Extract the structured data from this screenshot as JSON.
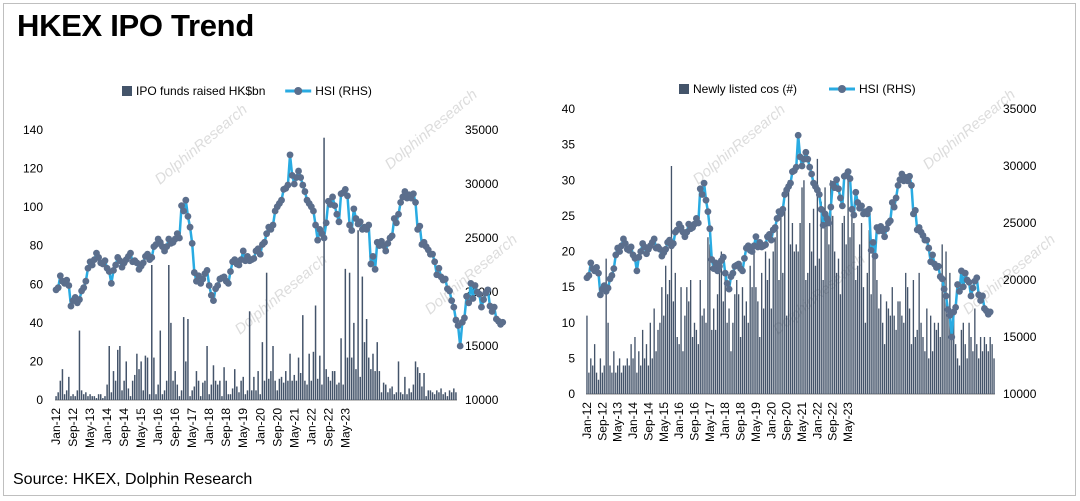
{
  "title": "HKEX IPO Trend",
  "source": "Source: HKEX, Dolphin Research",
  "colors": {
    "bar": "#44546a",
    "line": "#29abe2",
    "marker": "#5b6e8c",
    "axis": "#7f7f7f",
    "watermark": "#d9d9d9"
  },
  "watermark_text": "DolphinResearch",
  "chart_data": [
    {
      "type": "bar",
      "id": "chart-left",
      "title": "",
      "legend": [
        "IPO funds raised HK$bn",
        "HSI (RHS)"
      ],
      "legend_placement": "top",
      "ylim": [
        0,
        140
      ],
      "y_ticks": [
        0,
        20,
        40,
        60,
        80,
        100,
        120,
        140
      ],
      "y2lim": [
        10000,
        35000
      ],
      "y2_ticks": [
        10000,
        15000,
        20000,
        25000,
        30000,
        35000
      ],
      "x_tick_labels": [
        "Jan-12",
        "Sep-12",
        "May-13",
        "Jan-14",
        "Sep-14",
        "May-15",
        "Jan-16",
        "Sep-16",
        "May-17",
        "Jan-18",
        "Sep-18",
        "May-19",
        "Jan-20",
        "Sep-20",
        "May-21",
        "Jan-22",
        "Sep-22",
        "May-23"
      ],
      "series": [
        {
          "name": "IPO funds raised HK$bn",
          "type": "bar",
          "values": [
            2,
            4,
            10,
            16,
            3,
            5,
            12,
            2,
            3,
            2,
            5,
            36,
            5,
            3,
            4,
            2,
            3,
            2,
            2,
            1,
            3,
            3,
            1,
            2,
            8,
            28,
            4,
            15,
            10,
            26,
            28,
            5,
            10,
            20,
            6,
            2,
            10,
            13,
            24,
            16,
            20,
            5,
            23,
            22,
            3,
            70,
            22,
            3,
            8,
            36,
            3,
            5,
            10,
            70,
            40,
            10,
            15,
            8,
            2,
            5,
            43,
            20,
            42,
            2,
            5,
            7,
            15,
            10,
            2,
            9,
            10,
            28,
            3,
            8,
            18,
            10,
            8,
            10,
            2,
            17,
            10,
            3,
            3,
            6,
            16,
            7,
            4,
            10,
            12,
            3,
            5,
            46,
            5,
            12,
            5,
            15,
            3,
            30,
            10,
            66,
            11,
            15,
            28,
            10,
            5,
            11,
            12,
            9,
            15,
            10,
            24,
            10,
            13,
            10,
            22,
            14,
            44,
            10,
            8,
            24,
            10,
            25,
            49,
            11,
            23,
            8,
            136,
            16,
            12,
            10,
            15,
            15,
            8,
            9,
            32,
            8,
            68,
            22,
            66,
            22,
            40,
            16,
            88,
            12,
            64,
            30,
            42,
            22,
            16,
            24,
            15,
            30,
            15,
            4,
            9,
            8,
            4,
            6,
            7,
            3,
            4,
            20,
            4,
            3,
            12,
            3,
            6,
            4,
            8,
            20,
            17,
            14,
            7,
            14,
            2,
            5,
            5,
            4,
            3,
            5,
            4,
            6,
            3,
            4,
            2,
            5,
            4,
            6,
            4
          ]
        },
        {
          "name": "HSI (RHS)",
          "type": "line",
          "values": [
            20200,
            20400,
            21500,
            21000,
            20800,
            21100,
            20600,
            18700,
            19200,
            19500,
            19000,
            19300,
            20100,
            20400,
            21000,
            22200,
            22800,
            22500,
            23000,
            23600,
            23200,
            22700,
            22600,
            22900,
            22200,
            21900,
            20800,
            22000,
            22500,
            23200,
            22900,
            22300,
            22700,
            23000,
            23300,
            23600,
            22800,
            22900,
            22700,
            22100,
            22400,
            22700,
            23300,
            23500,
            23000,
            23200,
            24200,
            24400,
            24900,
            24600,
            24200,
            23800,
            24200,
            24900,
            24500,
            24600,
            24900,
            25400,
            25000,
            28000,
            27500,
            28500,
            27000,
            26000,
            24500,
            21800,
            21000,
            21500,
            20800,
            21200,
            21700,
            22000,
            20600,
            19700,
            19200,
            20300,
            20600,
            21200,
            21300,
            21400,
            21000,
            20800,
            21900,
            22800,
            23000,
            22600,
            22500,
            23000,
            23800,
            22900,
            23300,
            22900,
            23000,
            23100,
            23800,
            24000,
            23500,
            24400,
            24600,
            25400,
            26000,
            25800,
            26200,
            27500,
            27900,
            28200,
            28500,
            29500,
            29600,
            29900,
            32700,
            30800,
            30000,
            30600,
            31200,
            30600,
            29900,
            29300,
            28500,
            28200,
            27900,
            27500,
            26200,
            24800,
            25800,
            25400,
            25000,
            26400,
            28400,
            28100,
            28800,
            28000,
            27200,
            26500,
            29100,
            29200,
            29500,
            28900,
            26200,
            25700,
            27700,
            26800,
            26300,
            26500,
            25800,
            26000,
            25800,
            26200,
            22600,
            23300,
            22100,
            24600,
            24300,
            24700,
            24300,
            23800,
            24500,
            25000,
            25200,
            26800,
            26400,
            27200,
            28300,
            28800,
            29300,
            28700,
            29000,
            28700,
            29100,
            28300,
            25800,
            26100,
            24400,
            24600,
            24200,
            23900,
            23500,
            23500,
            22800,
            21600,
            22200,
            21400,
            21100,
            21200,
            20300,
            20100,
            19200,
            18600,
            17400,
            16900,
            15000,
            17200,
            17600,
            19600,
            19000,
            20800,
            19400,
            20600,
            20000,
            19800,
            18600,
            19300,
            19900,
            20200,
            18700,
            18200,
            18600,
            17500,
            17300,
            17000,
            17200
          ]
        }
      ]
    },
    {
      "type": "bar",
      "id": "chart-right",
      "title": "",
      "legend": [
        "Newly listed cos (#)",
        "HSI (RHS)"
      ],
      "legend_placement": "top",
      "ylim": [
        0,
        40
      ],
      "y_ticks": [
        0,
        5,
        10,
        15,
        20,
        25,
        30,
        35,
        40
      ],
      "y2lim": [
        10000,
        35000
      ],
      "y2_ticks": [
        10000,
        15000,
        20000,
        25000,
        30000,
        35000
      ],
      "x_tick_labels": [
        "Jan-12",
        "Sep-12",
        "May-13",
        "Jan-14",
        "Sep-14",
        "May-15",
        "Jan-16",
        "Sep-16",
        "May-17",
        "Jan-18",
        "Sep-18",
        "May-19",
        "Jan-20",
        "Sep-20",
        "May-21",
        "Jan-22",
        "Sep-22",
        "May-23"
      ],
      "series": [
        {
          "name": "Newly listed cos (#)",
          "type": "bar",
          "values": [
            11,
            3,
            5,
            4,
            7,
            3,
            2,
            5,
            3,
            4,
            19,
            10,
            4,
            3,
            6,
            3,
            4,
            5,
            3,
            4,
            4,
            5,
            4,
            7,
            5,
            8,
            3,
            6,
            4,
            9,
            5,
            7,
            4,
            10,
            5,
            12,
            6,
            9,
            10,
            15,
            11,
            18,
            14,
            16,
            32,
            13,
            17,
            8,
            7,
            15,
            6,
            11,
            15,
            13,
            16,
            8,
            10,
            9,
            7,
            16,
            11,
            12,
            10,
            22,
            21,
            9,
            12,
            9,
            14,
            17,
            20,
            13,
            17,
            10,
            12,
            6,
            10,
            14,
            16,
            14,
            8,
            15,
            11,
            13,
            10,
            18,
            15,
            20,
            15,
            13,
            8,
            17,
            12,
            20,
            16,
            19,
            12,
            20,
            22,
            23,
            16,
            25,
            17,
            26,
            11,
            30,
            21,
            24,
            20,
            21,
            20,
            24,
            29,
            30,
            16,
            17,
            24,
            20,
            26,
            18,
            33,
            19,
            27,
            16,
            29,
            24,
            21,
            30,
            25,
            20,
            17,
            19,
            14,
            24,
            25,
            21,
            30,
            22,
            25,
            24,
            16,
            18,
            21,
            24,
            15,
            10,
            17,
            23,
            14,
            20,
            21,
            16,
            12,
            14,
            10,
            7,
            13,
            12,
            11,
            15,
            11,
            9,
            13,
            13,
            11,
            10,
            17,
            15,
            12,
            7,
            16,
            8,
            9,
            17,
            10,
            8,
            6,
            12,
            5,
            11,
            6,
            10,
            9,
            10,
            8,
            21,
            16,
            20,
            11,
            17,
            10,
            12,
            7,
            5,
            4,
            9,
            10,
            7,
            5,
            10,
            8,
            6,
            12,
            7,
            5,
            8,
            6,
            8,
            7,
            6,
            8,
            7,
            5
          ]
        },
        {
          "name": "HSI (RHS)",
          "type": "line",
          "same_as": "chart-left"
        }
      ]
    }
  ]
}
